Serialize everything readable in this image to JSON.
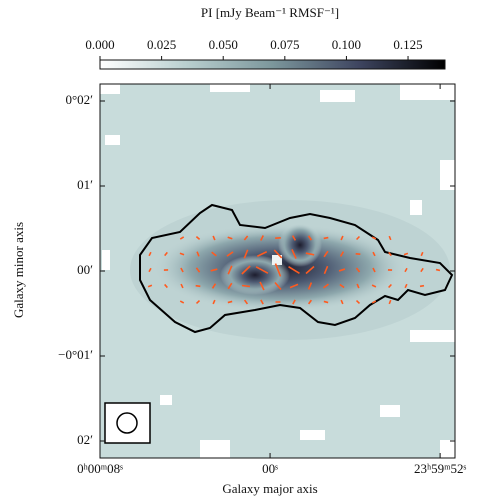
{
  "chart_data": {
    "type": "image",
    "colorbar_label": "PI [mJy Beam⁻¹ RMSF⁻¹]",
    "clim": [
      0,
      0.14
    ],
    "cticks": [
      {
        "value": 0,
        "label": "0.000"
      },
      {
        "value": 0.025,
        "label": "0.025"
      },
      {
        "value": 0.05,
        "label": "0.050"
      },
      {
        "value": 0.075,
        "label": "0.075"
      },
      {
        "value": 0.1,
        "label": "0.100"
      },
      {
        "value": 0.125,
        "label": "0.125"
      }
    ],
    "xlabel": "Galaxy major axis",
    "ylabel": "Galaxy minor axis",
    "xlim": [
      8,
      -8.7
    ],
    "xticks": [
      {
        "value": 8,
        "label": "0ʰ00ᵐ08ˢ"
      },
      {
        "value": 0,
        "label": "00ˢ"
      },
      {
        "value": -8,
        "label": "23ʰ59ᵐ52ˢ"
      }
    ],
    "ylim": [
      -2.2,
      2.2
    ],
    "yticks": [
      {
        "value": 2,
        "label": "0°02′"
      },
      {
        "value": 1,
        "label": "01′"
      },
      {
        "value": 0,
        "label": "00′"
      },
      {
        "value": -1,
        "label": "−0°01′"
      },
      {
        "value": -2,
        "label": "02′"
      }
    ]
  }
}
